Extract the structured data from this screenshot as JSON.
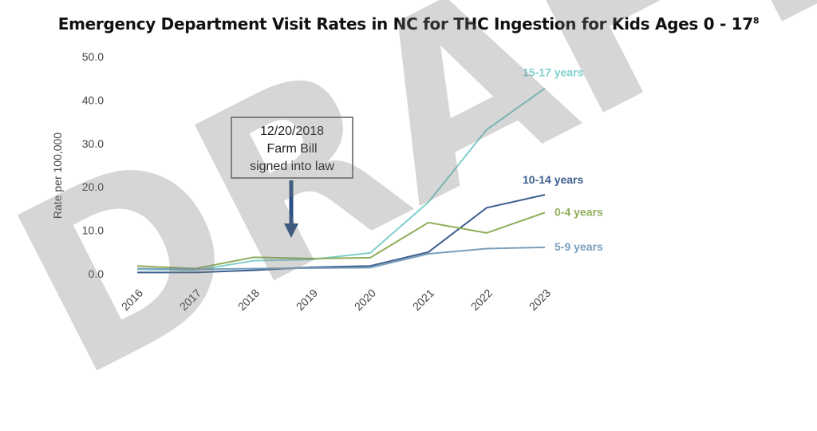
{
  "title": "Emergency Department Visit Rates in NC for THC Ingestion for Kids Ages 0 - 17",
  "title_footnote": "8",
  "watermark": "DRAFT",
  "chart_data": {
    "type": "line",
    "title": "Emergency Department Visit Rates in NC for THC Ingestion for Kids Ages 0 - 17",
    "xlabel": "",
    "ylabel": "Rate per 100,000",
    "x": [
      "2016",
      "2017",
      "2018",
      "2019",
      "2020",
      "2021",
      "2022",
      "2023"
    ],
    "ylim": [
      0,
      50
    ],
    "yticks": [
      "0.0",
      "10.0",
      "20.0",
      "30.0",
      "40.0",
      "50.0"
    ],
    "grid": false,
    "legend": "inline labels at line ends",
    "series": [
      {
        "name": "15-17 years",
        "color": "#7ecfcc",
        "values": [
          1.0,
          0.8,
          3.0,
          3.3,
          4.8,
          16.5,
          33.2,
          42.7
        ]
      },
      {
        "name": "10-14 years",
        "color": "#3c5f8c",
        "values": [
          0.3,
          0.3,
          0.8,
          1.5,
          1.8,
          5.0,
          15.2,
          18.2
        ]
      },
      {
        "name": "0-4 years",
        "color": "#8fad5a",
        "values": [
          1.8,
          1.2,
          3.8,
          3.5,
          3.7,
          11.8,
          9.4,
          14.1
        ]
      },
      {
        "name": "5-9 years",
        "color": "#7a9fbc",
        "values": [
          1.2,
          1.0,
          1.2,
          1.3,
          1.4,
          4.6,
          5.8,
          6.1
        ]
      }
    ],
    "annotations": [
      {
        "text_lines": [
          "12/20/2018",
          "Farm Bill",
          "signed into law"
        ],
        "x_between": [
          "2018",
          "2019"
        ]
      }
    ]
  }
}
